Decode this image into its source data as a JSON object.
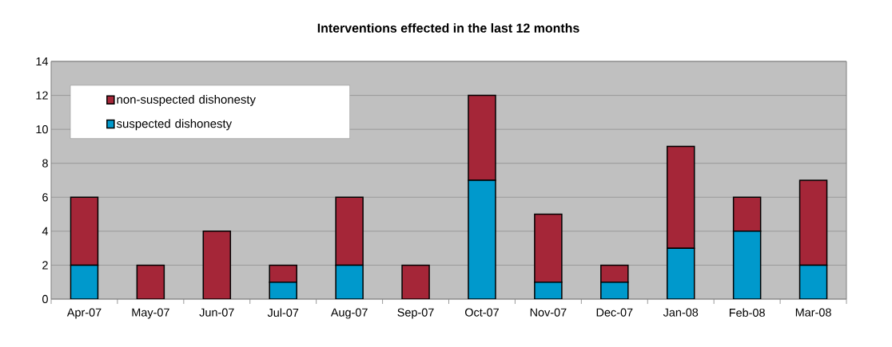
{
  "chart_data": {
    "type": "bar",
    "title": "Interventions effected in the last 12 months",
    "categories": [
      "Apr-07",
      "May-07",
      "Jun-07",
      "Jul-07",
      "Aug-07",
      "Sep-07",
      "Oct-07",
      "Nov-07",
      "Dec-07",
      "Jan-08",
      "Feb-08",
      "Mar-08"
    ],
    "stacked": true,
    "series": [
      {
        "name": "suspected dishonesty",
        "color": "#0099cc",
        "values": [
          2,
          0,
          0,
          1,
          2,
          0,
          7,
          1,
          1,
          3,
          4,
          2
        ]
      },
      {
        "name": "non-suspected dishonesty",
        "color": "#a52638",
        "values": [
          4,
          2,
          4,
          1,
          4,
          2,
          5,
          4,
          1,
          6,
          2,
          5
        ]
      }
    ],
    "ylim": [
      0,
      14
    ],
    "yticks": [
      0,
      2,
      4,
      6,
      8,
      10,
      12,
      14
    ],
    "grid": "y",
    "legend": "top left"
  }
}
